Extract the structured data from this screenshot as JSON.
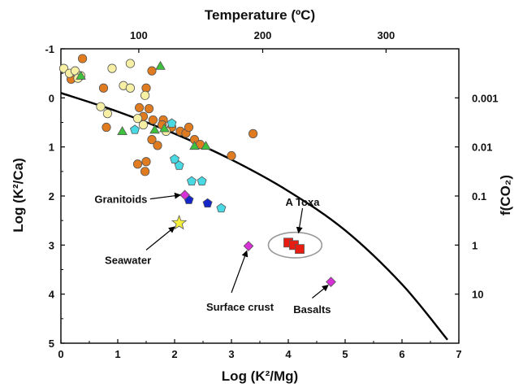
{
  "chart_data": {
    "type": "scatter",
    "title": "",
    "xlabel": "Log (K²/Mg)",
    "ylabel": "Log (K²/Ca)",
    "x2label": "Temperature (ºC)",
    "y2label": "f(CO₂)",
    "xlim": [
      0,
      7
    ],
    "ylim": [
      -1,
      5
    ],
    "y_inverted": true,
    "grid": false,
    "legend": "none",
    "x_ticks": [
      "0",
      "1",
      "2",
      "3",
      "4",
      "5",
      "6",
      "7"
    ],
    "y_ticks": [
      "-1",
      "0",
      "1",
      "2",
      "3",
      "4",
      "5"
    ],
    "top_ticks": [
      {
        "label": "100",
        "x": 1.37
      },
      {
        "label": "200",
        "x": 3.55
      },
      {
        "label": "300",
        "x": 5.72
      }
    ],
    "right_ticks": [
      {
        "label": "0.001",
        "y": 0.0
      },
      {
        "label": "0.01",
        "y": 1.0
      },
      {
        "label": "0.1",
        "y": 2.0
      },
      {
        "label": "1",
        "y": 3.0
      },
      {
        "label": "10",
        "y": 4.0
      }
    ],
    "curve": {
      "color": "#000000",
      "points": [
        [
          0,
          -0.1
        ],
        [
          1,
          0.28
        ],
        [
          2,
          0.73
        ],
        [
          3,
          1.26
        ],
        [
          4,
          1.9
        ],
        [
          5,
          2.7
        ],
        [
          6,
          3.8
        ],
        [
          6.8,
          4.93
        ]
      ]
    },
    "series": [
      {
        "marker": "circle",
        "color": "#e07b20",
        "points": [
          [
            0.38,
            -0.8
          ],
          [
            0.18,
            -0.38
          ],
          [
            0.75,
            -0.2
          ],
          [
            1.6,
            -0.55
          ],
          [
            1.5,
            -0.2
          ],
          [
            1.38,
            0.2
          ],
          [
            1.55,
            0.22
          ],
          [
            1.45,
            0.38
          ],
          [
            1.62,
            0.45
          ],
          [
            1.8,
            0.45
          ],
          [
            1.95,
            0.6
          ],
          [
            2.1,
            0.68
          ],
          [
            2.2,
            0.72
          ],
          [
            2.25,
            0.6
          ],
          [
            2.35,
            0.85
          ],
          [
            2.45,
            0.95
          ],
          [
            1.6,
            0.85
          ],
          [
            1.7,
            0.97
          ],
          [
            0.8,
            0.6
          ],
          [
            1.35,
            1.35
          ],
          [
            1.48,
            1.5
          ],
          [
            1.5,
            1.3
          ],
          [
            3.0,
            1.18
          ],
          [
            3.38,
            0.73
          ],
          [
            1.78,
            0.55
          ]
        ]
      },
      {
        "marker": "circle",
        "color": "#f7f0a4",
        "points": [
          [
            0.05,
            -0.6
          ],
          [
            0.15,
            -0.5
          ],
          [
            0.25,
            -0.55
          ],
          [
            0.35,
            -0.45
          ],
          [
            0.3,
            -0.4
          ],
          [
            0.9,
            -0.6
          ],
          [
            1.22,
            -0.7
          ],
          [
            1.1,
            -0.25
          ],
          [
            1.22,
            -0.2
          ],
          [
            0.7,
            0.18
          ],
          [
            1.48,
            -0.05
          ],
          [
            1.35,
            0.42
          ],
          [
            1.45,
            0.55
          ],
          [
            1.85,
            0.68
          ],
          [
            0.82,
            0.32
          ]
        ]
      },
      {
        "marker": "triangle",
        "color": "#3ec23e",
        "points": [
          [
            1.75,
            -0.65
          ],
          [
            1.08,
            0.68
          ],
          [
            1.65,
            0.65
          ],
          [
            1.82,
            0.62
          ],
          [
            2.35,
            0.98
          ],
          [
            2.55,
            0.98
          ],
          [
            0.35,
            -0.45
          ]
        ]
      },
      {
        "marker": "pentagon",
        "color": "#49d9e3",
        "points": [
          [
            1.3,
            0.65
          ],
          [
            2.0,
            1.25
          ],
          [
            2.08,
            1.38
          ],
          [
            2.3,
            1.7
          ],
          [
            2.48,
            1.7
          ],
          [
            2.82,
            2.25
          ],
          [
            1.95,
            0.52
          ]
        ]
      },
      {
        "marker": "pentagon",
        "color": "#1426c8",
        "points": [
          [
            2.25,
            2.08
          ],
          [
            2.58,
            2.15
          ]
        ]
      },
      {
        "marker": "diamond",
        "color": "#d630d6",
        "points": [
          [
            2.18,
            1.98
          ],
          [
            3.3,
            3.02
          ],
          [
            4.75,
            3.75
          ]
        ]
      },
      {
        "marker": "star",
        "color": "#f5f03a",
        "points": [
          [
            2.08,
            2.55
          ]
        ]
      },
      {
        "marker": "square",
        "color": "#e81c10",
        "points": [
          [
            4.0,
            2.95
          ],
          [
            4.1,
            3.0
          ],
          [
            4.2,
            3.08
          ]
        ]
      }
    ],
    "annotations": [
      {
        "text": "Granitoids",
        "text_at": [
          1.52,
          2.06
        ],
        "anchor": "end",
        "arrow_from": [
          1.57,
          2.06
        ],
        "arrow_to": [
          2.1,
          1.98
        ]
      },
      {
        "text": "Seawater",
        "text_at": [
          1.18,
          3.3
        ],
        "anchor": "middle",
        "arrow_from": [
          1.5,
          3.1
        ],
        "arrow_to": [
          2.0,
          2.63
        ]
      },
      {
        "text": "Surface crust",
        "text_at": [
          3.15,
          4.25
        ],
        "anchor": "middle",
        "arrow_from": [
          3.0,
          3.97
        ],
        "arrow_to": [
          3.27,
          3.12
        ]
      },
      {
        "text": "Basalts",
        "text_at": [
          4.42,
          4.3
        ],
        "anchor": "middle",
        "arrow_from": [
          4.42,
          4.08
        ],
        "arrow_to": [
          4.7,
          3.82
        ]
      },
      {
        "text": "A Toxa",
        "text_at": [
          4.25,
          2.12
        ],
        "anchor": "middle",
        "arrow_from": [
          4.25,
          2.25
        ],
        "arrow_to": [
          4.18,
          2.75
        ]
      }
    ],
    "highlight_ellipse": {
      "cx": 4.12,
      "cy": 3.0,
      "rx": 0.47,
      "ry": 0.26,
      "color": "#999999"
    }
  }
}
